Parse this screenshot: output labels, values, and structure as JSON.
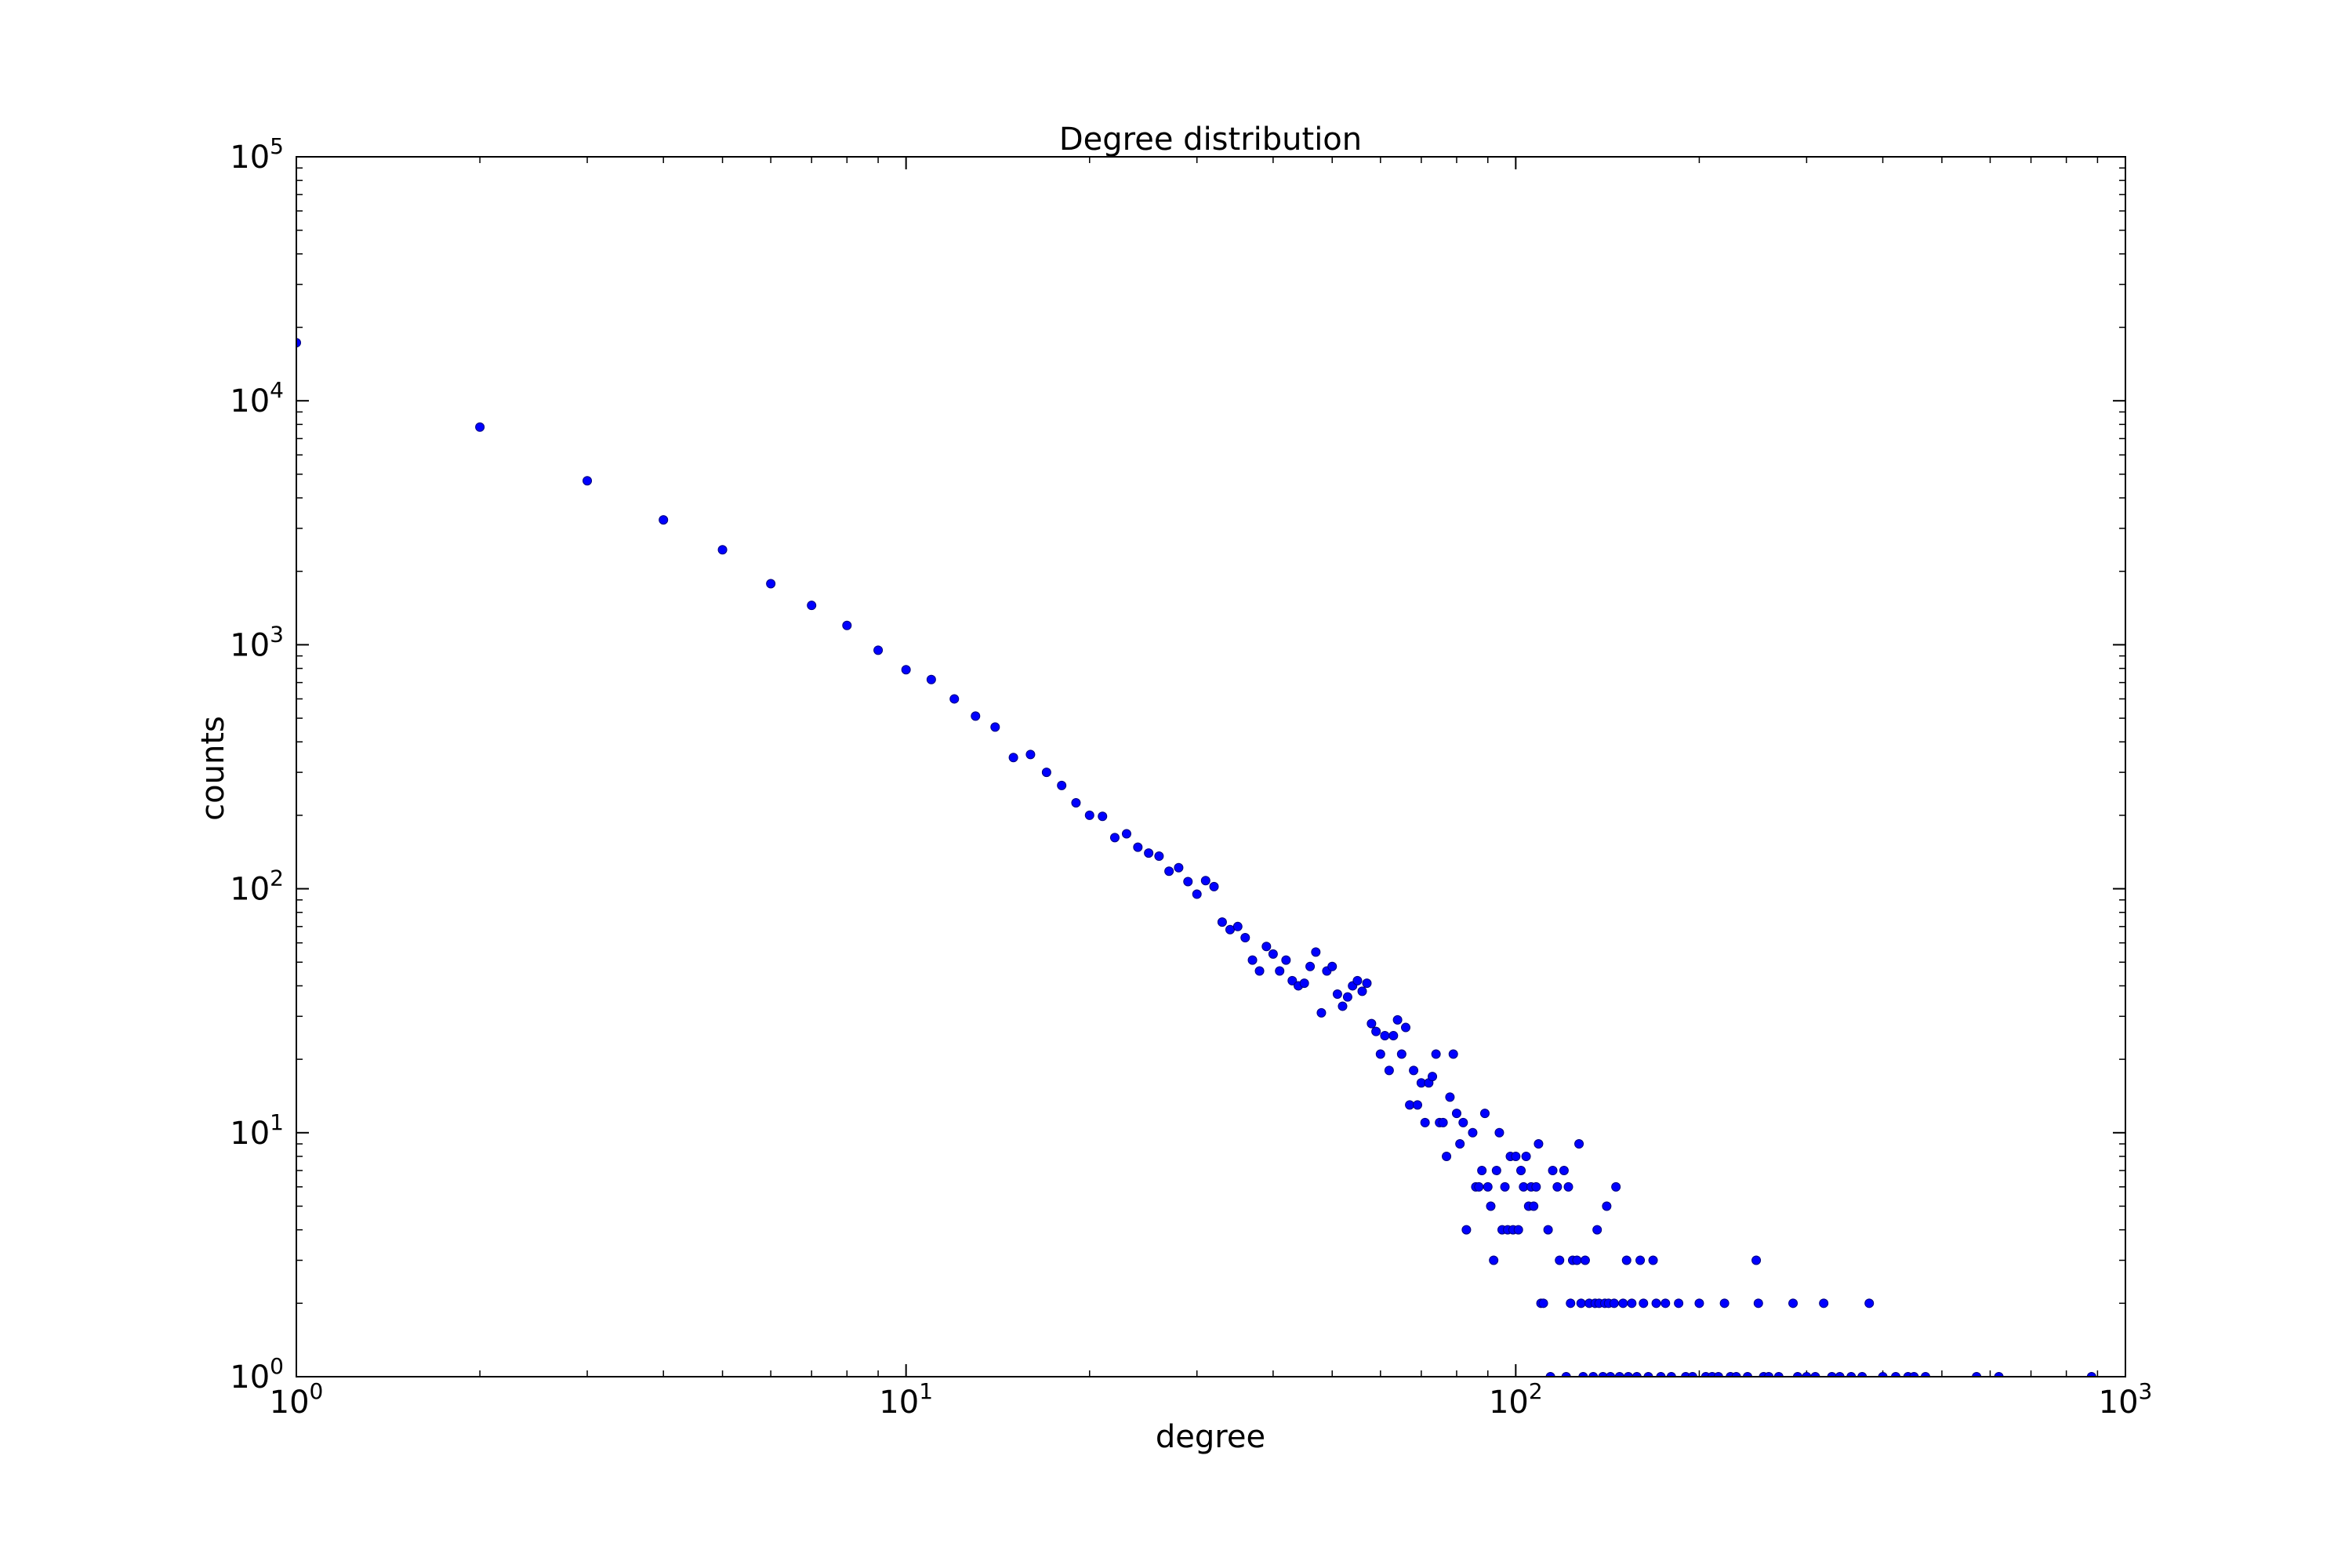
{
  "chart_data": {
    "type": "scatter",
    "title": "Degree distribution",
    "xlabel": "degree",
    "ylabel": "counts",
    "xscale": "log",
    "yscale": "log",
    "xlim": [
      1,
      1000
    ],
    "ylim": [
      1,
      100000
    ],
    "grid": false,
    "marker_color": "#0000ff",
    "x_ticks": [
      {
        "base": "10",
        "exp": "0",
        "value": 1
      },
      {
        "base": "10",
        "exp": "1",
        "value": 10
      },
      {
        "base": "10",
        "exp": "2",
        "value": 100
      },
      {
        "base": "10",
        "exp": "3",
        "value": 1000
      }
    ],
    "y_ticks": [
      {
        "base": "10",
        "exp": "0",
        "value": 1
      },
      {
        "base": "10",
        "exp": "1",
        "value": 10
      },
      {
        "base": "10",
        "exp": "2",
        "value": 100
      },
      {
        "base": "10",
        "exp": "3",
        "value": 1000
      },
      {
        "base": "10",
        "exp": "4",
        "value": 10000
      },
      {
        "base": "10",
        "exp": "5",
        "value": 100000
      }
    ],
    "points": [
      [
        1,
        17300
      ],
      [
        2,
        7800
      ],
      [
        3,
        4700
      ],
      [
        4,
        3250
      ],
      [
        5,
        2450
      ],
      [
        6,
        1780
      ],
      [
        7,
        1450
      ],
      [
        8,
        1200
      ],
      [
        9,
        950
      ],
      [
        10,
        790
      ],
      [
        11,
        720
      ],
      [
        12,
        600
      ],
      [
        13,
        510
      ],
      [
        14,
        460
      ],
      [
        15,
        345
      ],
      [
        16,
        355
      ],
      [
        17,
        300
      ],
      [
        18,
        265
      ],
      [
        19,
        225
      ],
      [
        20,
        200
      ],
      [
        21,
        198
      ],
      [
        22,
        162
      ],
      [
        23,
        168
      ],
      [
        24,
        148
      ],
      [
        25,
        140
      ],
      [
        26,
        136
      ],
      [
        27,
        118
      ],
      [
        28,
        122
      ],
      [
        29,
        107
      ],
      [
        30,
        95
      ],
      [
        31,
        108
      ],
      [
        32,
        102
      ],
      [
        33,
        73
      ],
      [
        34,
        68
      ],
      [
        35,
        70
      ],
      [
        36,
        63
      ],
      [
        37,
        51
      ],
      [
        38,
        46
      ],
      [
        39,
        58
      ],
      [
        40,
        54
      ],
      [
        41,
        46
      ],
      [
        42,
        51
      ],
      [
        43,
        42
      ],
      [
        44,
        40
      ],
      [
        45,
        41
      ],
      [
        46,
        48
      ],
      [
        47,
        55
      ],
      [
        48,
        31
      ],
      [
        49,
        46
      ],
      [
        50,
        48
      ],
      [
        51,
        37
      ],
      [
        52,
        33
      ],
      [
        53,
        36
      ],
      [
        54,
        40
      ],
      [
        55,
        42
      ],
      [
        56,
        38
      ],
      [
        57,
        41
      ],
      [
        58,
        28
      ],
      [
        59,
        26
      ],
      [
        60,
        21
      ],
      [
        61,
        25
      ],
      [
        62,
        18
      ],
      [
        63,
        25
      ],
      [
        64,
        29
      ],
      [
        65,
        21
      ],
      [
        66,
        27
      ],
      [
        67,
        13
      ],
      [
        68,
        18
      ],
      [
        69,
        13
      ],
      [
        70,
        16
      ],
      [
        71,
        11
      ],
      [
        72,
        16
      ],
      [
        73,
        17
      ],
      [
        74,
        21
      ],
      [
        75,
        11
      ],
      [
        76,
        11
      ],
      [
        77,
        8
      ],
      [
        78,
        14
      ],
      [
        79,
        21
      ],
      [
        80,
        12
      ],
      [
        81,
        9
      ],
      [
        82,
        11
      ],
      [
        83,
        4
      ],
      [
        85,
        10
      ],
      [
        86,
        6
      ],
      [
        87,
        6
      ],
      [
        88,
        7
      ],
      [
        89,
        12
      ],
      [
        90,
        6
      ],
      [
        91,
        5
      ],
      [
        92,
        3
      ],
      [
        93,
        7
      ],
      [
        94,
        10
      ],
      [
        95,
        4
      ],
      [
        96,
        6
      ],
      [
        97,
        4
      ],
      [
        98,
        8
      ],
      [
        99,
        4
      ],
      [
        100,
        8
      ],
      [
        101,
        4
      ],
      [
        102,
        7
      ],
      [
        103,
        6
      ],
      [
        104,
        8
      ],
      [
        105,
        5
      ],
      [
        106,
        6
      ],
      [
        107,
        5
      ],
      [
        108,
        6
      ],
      [
        109,
        9
      ],
      [
        110,
        2
      ],
      [
        111,
        2
      ],
      [
        113,
        4
      ],
      [
        114,
        1
      ],
      [
        115,
        7
      ],
      [
        117,
        6
      ],
      [
        118,
        3
      ],
      [
        120,
        7
      ],
      [
        121,
        1
      ],
      [
        122,
        6
      ],
      [
        123,
        2
      ],
      [
        124,
        3
      ],
      [
        126,
        3
      ],
      [
        127,
        9
      ],
      [
        128,
        2
      ],
      [
        129,
        1
      ],
      [
        130,
        3
      ],
      [
        132,
        2
      ],
      [
        134,
        1
      ],
      [
        135,
        2
      ],
      [
        136,
        4
      ],
      [
        137,
        2
      ],
      [
        139,
        1
      ],
      [
        140,
        2
      ],
      [
        141,
        5
      ],
      [
        142,
        2
      ],
      [
        143,
        1
      ],
      [
        145,
        2
      ],
      [
        146,
        6
      ],
      [
        148,
        1
      ],
      [
        150,
        2
      ],
      [
        152,
        3
      ],
      [
        153,
        1
      ],
      [
        155,
        2
      ],
      [
        158,
        1
      ],
      [
        160,
        3
      ],
      [
        162,
        2
      ],
      [
        165,
        1
      ],
      [
        168,
        3
      ],
      [
        170,
        2
      ],
      [
        173,
        1
      ],
      [
        176,
        2
      ],
      [
        180,
        1
      ],
      [
        185,
        2
      ],
      [
        190,
        1
      ],
      [
        195,
        1
      ],
      [
        200,
        2
      ],
      [
        205,
        1
      ],
      [
        210,
        1
      ],
      [
        215,
        1
      ],
      [
        220,
        2
      ],
      [
        225,
        1
      ],
      [
        230,
        1
      ],
      [
        240,
        1
      ],
      [
        248,
        3
      ],
      [
        250,
        2
      ],
      [
        255,
        1
      ],
      [
        260,
        1
      ],
      [
        270,
        1
      ],
      [
        285,
        2
      ],
      [
        290,
        1
      ],
      [
        300,
        1
      ],
      [
        310,
        1
      ],
      [
        320,
        2
      ],
      [
        330,
        1
      ],
      [
        340,
        1
      ],
      [
        355,
        1
      ],
      [
        370,
        1
      ],
      [
        380,
        2
      ],
      [
        400,
        1
      ],
      [
        420,
        1
      ],
      [
        440,
        1
      ],
      [
        450,
        1
      ],
      [
        470,
        1
      ],
      [
        570,
        1
      ],
      [
        620,
        1
      ],
      [
        880,
        1
      ]
    ]
  }
}
